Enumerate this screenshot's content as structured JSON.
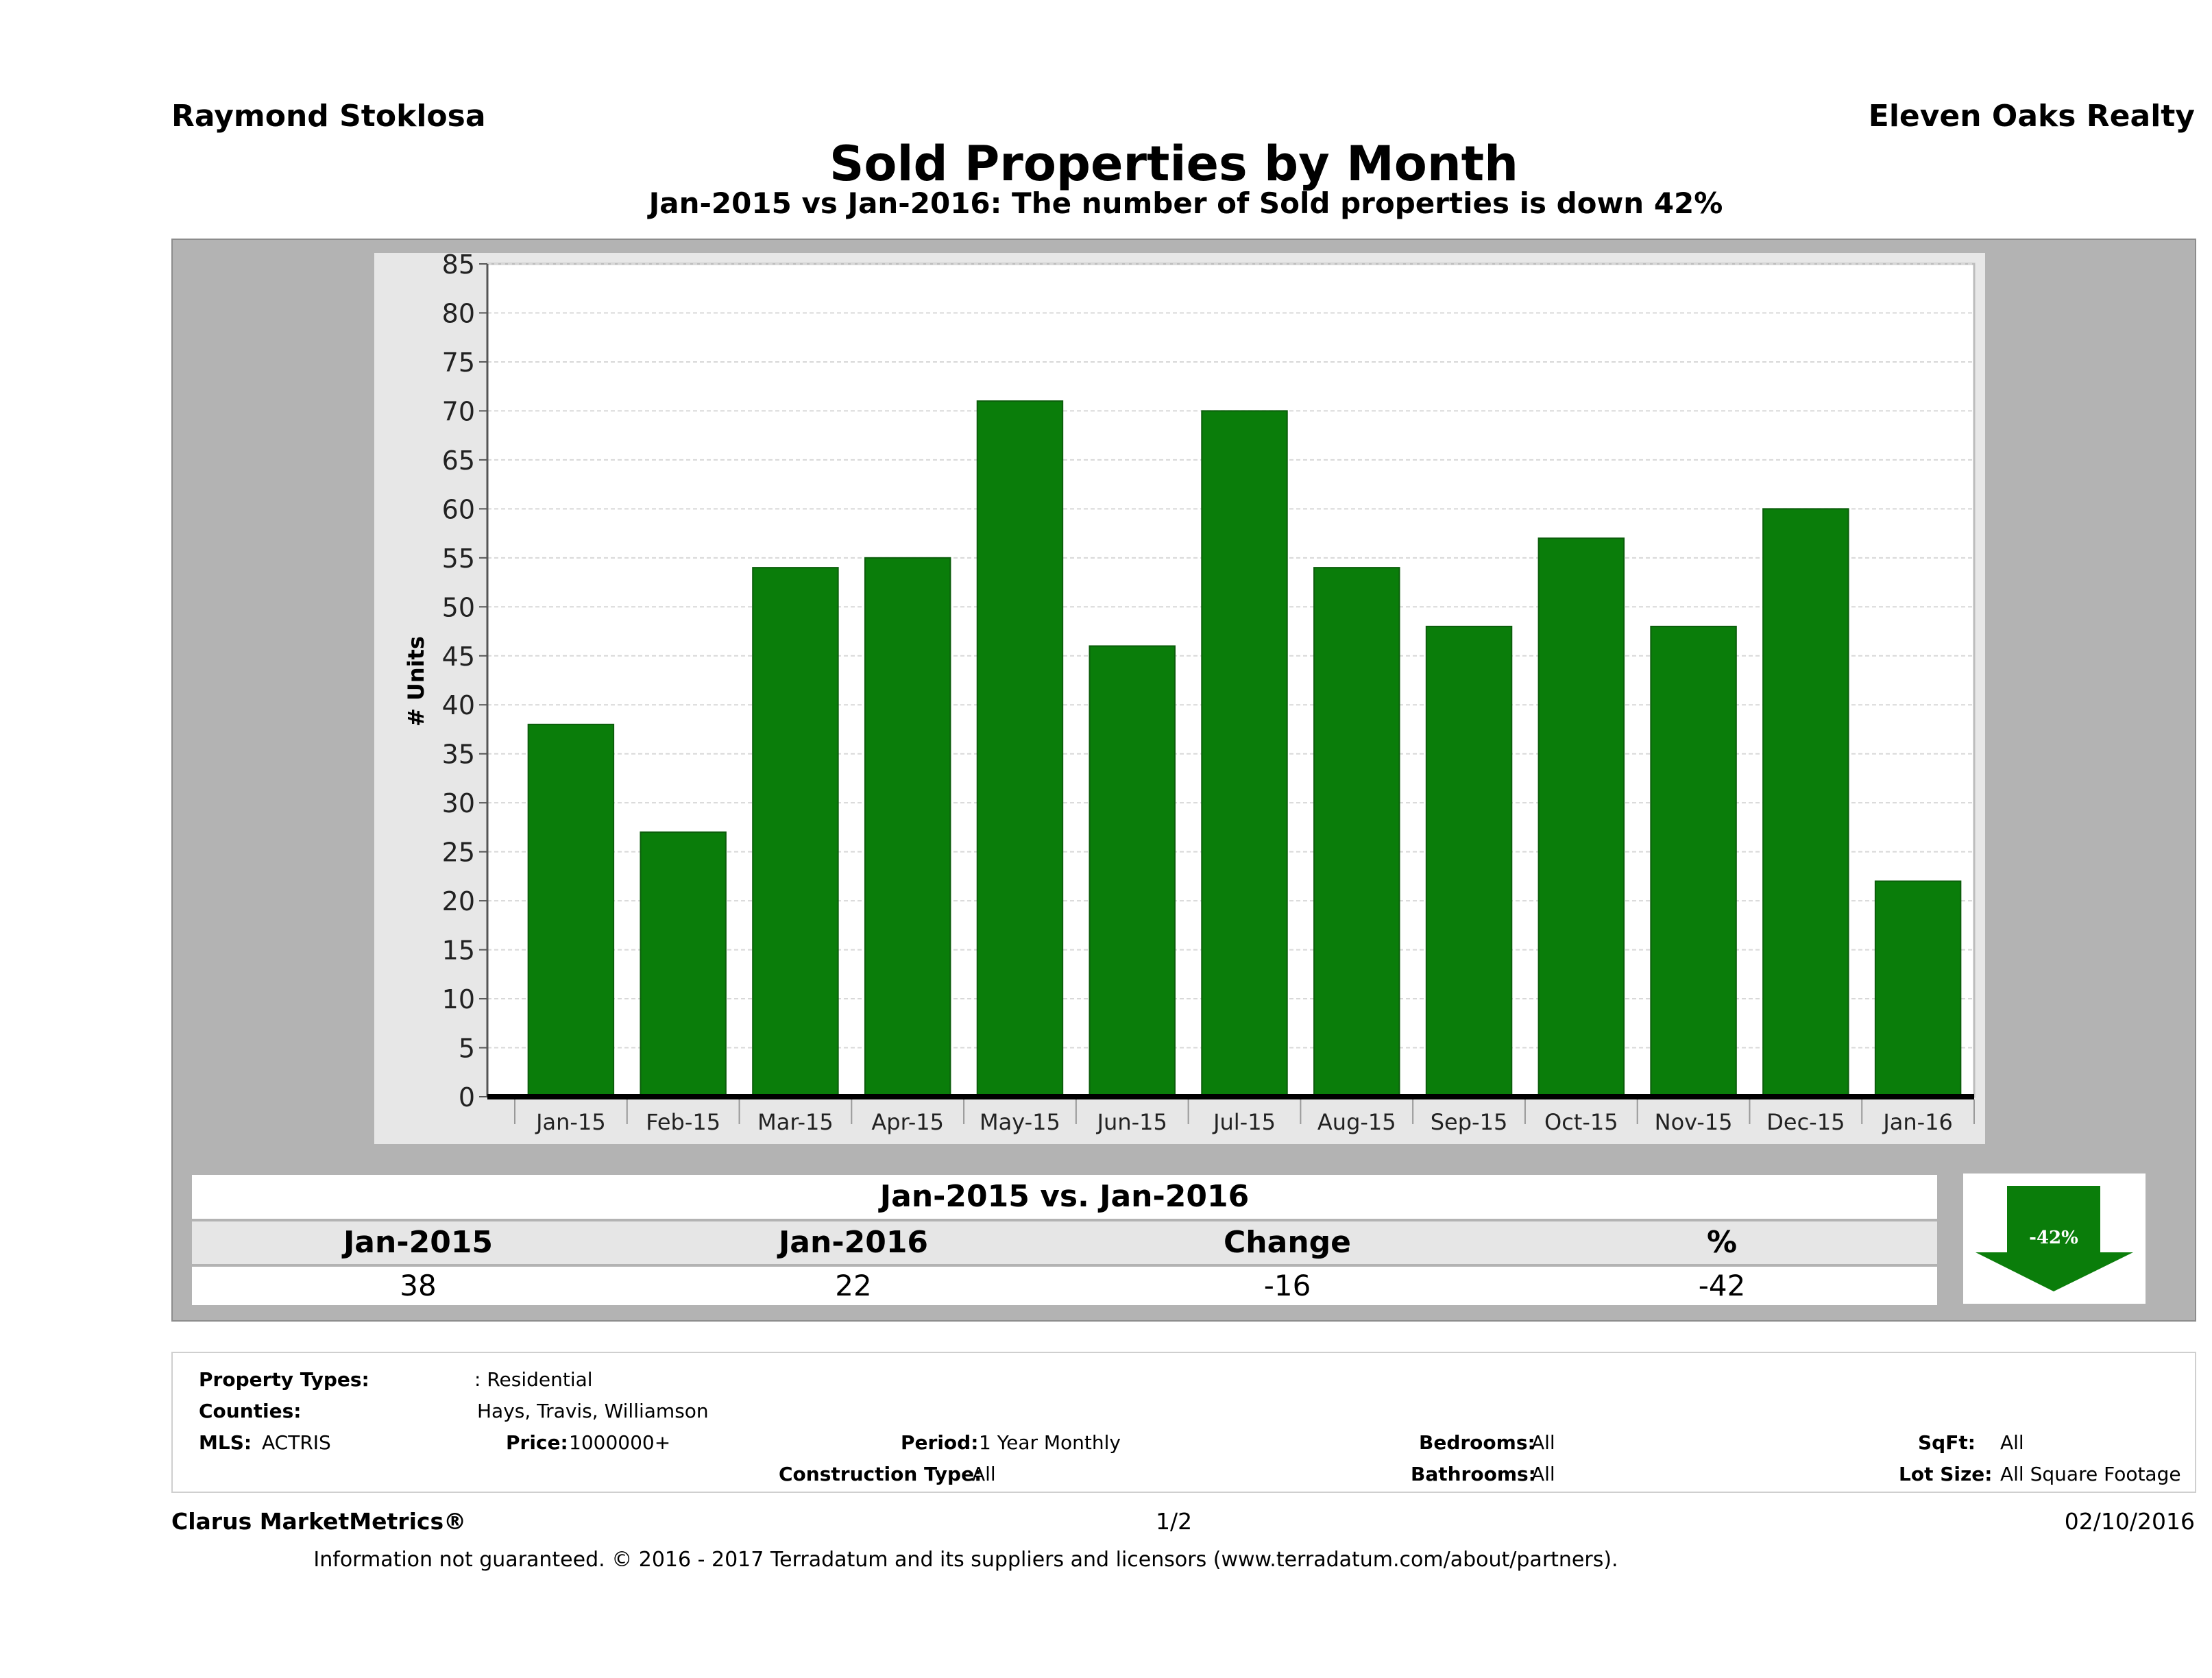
{
  "header": {
    "agent_name": "Raymond Stoklosa",
    "company": "Eleven Oaks Realty",
    "title": "Sold Properties by Month",
    "subtitle": "Jan-2015 vs Jan-2016: The number of Sold  properties is down 42%"
  },
  "chart_data": {
    "type": "bar",
    "categories": [
      "Jan-15",
      "Feb-15",
      "Mar-15",
      "Apr-15",
      "May-15",
      "Jun-15",
      "Jul-15",
      "Aug-15",
      "Sep-15",
      "Oct-15",
      "Nov-15",
      "Dec-15",
      "Jan-16"
    ],
    "values": [
      38,
      27,
      54,
      55,
      71,
      46,
      70,
      54,
      48,
      57,
      48,
      60,
      22
    ],
    "ylabel": "# Units",
    "xlabel": "",
    "ylim": [
      0,
      85
    ],
    "yticks": [
      0,
      5,
      10,
      15,
      20,
      25,
      30,
      35,
      40,
      45,
      50,
      55,
      60,
      65,
      70,
      75,
      80,
      85
    ],
    "bar_color": "#0a7d0a",
    "grid": true
  },
  "summary": {
    "title": "Jan-2015 vs. Jan-2016",
    "headers": [
      "Jan-2015",
      "Jan-2016",
      "Change",
      "%"
    ],
    "values": [
      "38",
      "22",
      "-16",
      "-42"
    ],
    "arrow_label": "-42%",
    "arrow_color": "#0a7d0a"
  },
  "filters": {
    "property_types_label": "Property Types:",
    "property_types_value": ": Residential",
    "counties_label": "Counties:",
    "counties_value": "Hays, Travis, Williamson",
    "mls_label": "MLS:",
    "mls_value": "ACTRIS",
    "price_label": "Price:",
    "price_value": "1000000+",
    "period_label": "Period:",
    "period_value": "1 Year Monthly",
    "construction_label": "Construction Type:",
    "construction_value": "All",
    "bedrooms_label": "Bedrooms:",
    "bedrooms_value": "All",
    "bathrooms_label": "Bathrooms:",
    "bathrooms_value": "All",
    "sqft_label": "SqFt:",
    "sqft_value": "All",
    "lot_label": "Lot Size:",
    "lot_value": "All Square Footage"
  },
  "footer": {
    "brand": "Clarus MarketMetrics®",
    "page": "1/2",
    "date": "02/10/2016",
    "disclaimer": "Information not guaranteed. © 2016 - 2017 Terradatum and its suppliers and licensors (www.terradatum.com/about/partners)."
  }
}
